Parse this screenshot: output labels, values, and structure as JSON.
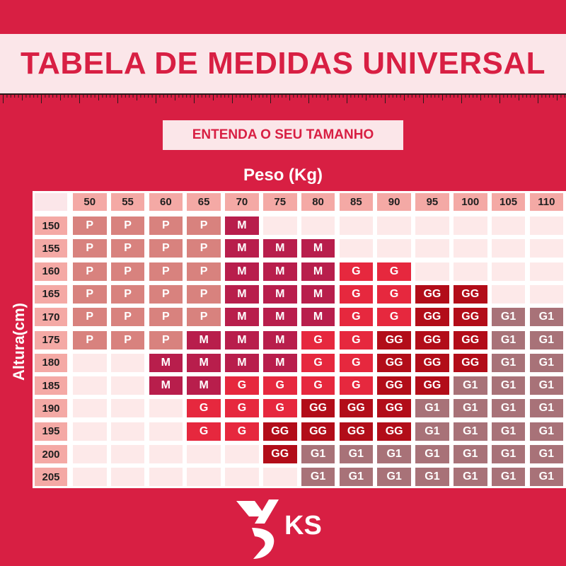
{
  "title": "TABELA DE MEDIDAS UNIVERSAL",
  "subtitle": "ENTENDA O SEU TAMANHO",
  "weight_label": "Peso (Kg)",
  "height_label": "Altura(cm)",
  "weights": [
    "50",
    "55",
    "60",
    "65",
    "70",
    "75",
    "80",
    "85",
    "90",
    "95",
    "100",
    "105",
    "110"
  ],
  "heights": [
    "150",
    "155",
    "160",
    "165",
    "170",
    "175",
    "180",
    "185",
    "190",
    "195",
    "200",
    "205"
  ],
  "sizes": [
    [
      "P",
      "P",
      "P",
      "P",
      "M",
      "",
      "",
      "",
      "",
      "",
      "",
      "",
      ""
    ],
    [
      "P",
      "P",
      "P",
      "P",
      "M",
      "M",
      "M",
      "",
      "",
      "",
      "",
      "",
      ""
    ],
    [
      "P",
      "P",
      "P",
      "P",
      "M",
      "M",
      "M",
      "G",
      "G",
      "",
      "",
      "",
      ""
    ],
    [
      "P",
      "P",
      "P",
      "P",
      "M",
      "M",
      "M",
      "G",
      "G",
      "GG",
      "GG",
      "",
      ""
    ],
    [
      "P",
      "P",
      "P",
      "P",
      "M",
      "M",
      "M",
      "G",
      "G",
      "GG",
      "GG",
      "G1",
      "G1"
    ],
    [
      "P",
      "P",
      "P",
      "M",
      "M",
      "M",
      "G",
      "G",
      "GG",
      "GG",
      "GG",
      "G1",
      "G1"
    ],
    [
      "",
      "",
      "M",
      "M",
      "M",
      "M",
      "G",
      "G",
      "GG",
      "GG",
      "GG",
      "G1",
      "G1"
    ],
    [
      "",
      "",
      "M",
      "M",
      "G",
      "G",
      "G",
      "G",
      "GG",
      "GG",
      "G1",
      "G1",
      "G1"
    ],
    [
      "",
      "",
      "",
      "G",
      "G",
      "G",
      "GG",
      "GG",
      "GG",
      "G1",
      "G1",
      "G1",
      "G1"
    ],
    [
      "",
      "",
      "",
      "G",
      "G",
      "GG",
      "GG",
      "GG",
      "GG",
      "G1",
      "G1",
      "G1",
      "G1"
    ],
    [
      "",
      "",
      "",
      "",
      "",
      "GG",
      "G1",
      "G1",
      "G1",
      "G1",
      "G1",
      "G1",
      "G1"
    ],
    [
      "",
      "",
      "",
      "",
      "",
      "",
      "G1",
      "G1",
      "G1",
      "G1",
      "G1",
      "G1",
      "G1"
    ]
  ],
  "size_colors": {
    "P": "#d8827e",
    "M": "#b81e4c",
    "G": "#e6283e",
    "GG": "#b20d19",
    "G1": "#a87278"
  },
  "brand": {
    "logo_text": "KS",
    "background": "#d81f43",
    "accent": "#fbe6e9"
  }
}
